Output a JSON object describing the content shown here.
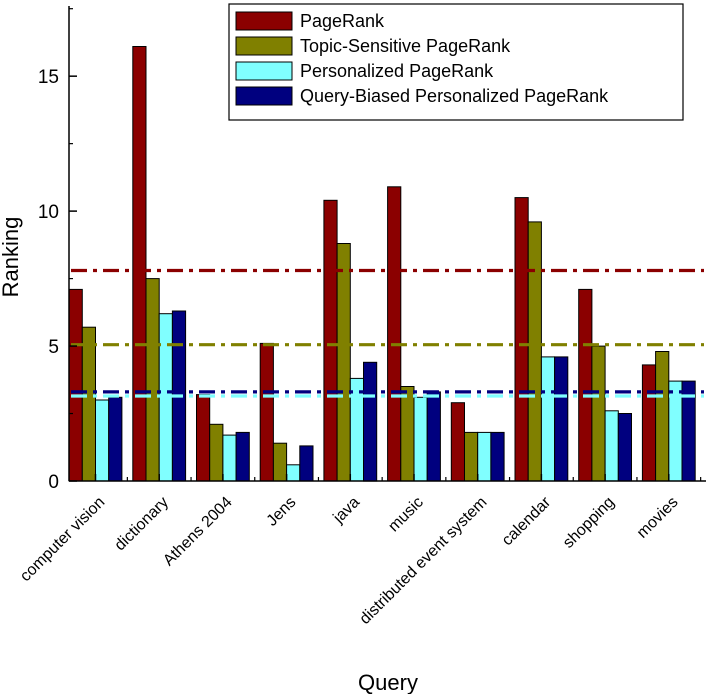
{
  "chart_data": {
    "type": "bar",
    "xlabel": "Query",
    "ylabel": "Ranking",
    "ylim": [
      0,
      17.6
    ],
    "yticks": [
      0,
      5,
      10,
      15
    ],
    "categories": [
      "computer vision",
      "dictionary",
      "Athens 2004",
      "Jens",
      "java",
      "music",
      "distributed event system",
      "calendar",
      "shopping",
      "movies"
    ],
    "series": [
      {
        "name": "PageRank",
        "color": "#8b0000",
        "values": [
          7.1,
          16.1,
          3.2,
          5.1,
          10.4,
          10.9,
          2.9,
          10.5,
          7.1,
          4.3
        ]
      },
      {
        "name": "Topic-Sensitive PageRank",
        "color": "#808000",
        "values": [
          5.7,
          7.5,
          2.1,
          1.4,
          8.8,
          3.5,
          1.8,
          9.6,
          5.0,
          4.8
        ]
      },
      {
        "name": "Personalized PageRank",
        "color": "#80ffff",
        "values": [
          3.0,
          6.2,
          1.7,
          0.6,
          3.8,
          3.1,
          1.8,
          4.6,
          2.6,
          3.7
        ]
      },
      {
        "name": "Query-Biased Personalized PageRank",
        "color": "#00007f",
        "values": [
          3.1,
          6.3,
          1.8,
          1.3,
          4.4,
          3.3,
          1.8,
          4.6,
          2.5,
          3.7
        ]
      }
    ],
    "reference_lines": [
      {
        "series": "PageRank",
        "value": 7.8,
        "color": "#8b0000",
        "style": "dash-dot"
      },
      {
        "series": "Topic-Sensitive PageRank",
        "value": 5.05,
        "color": "#808000",
        "style": "dash-dot"
      },
      {
        "series": "Personalized PageRank",
        "value": 3.15,
        "color": "#80ffff",
        "style": "dash-dot"
      },
      {
        "series": "Query-Biased Personalized PageRank",
        "value": 3.3,
        "color": "#00007f",
        "style": "dash-dot"
      }
    ],
    "legend_position": "top-right",
    "grid": false
  }
}
